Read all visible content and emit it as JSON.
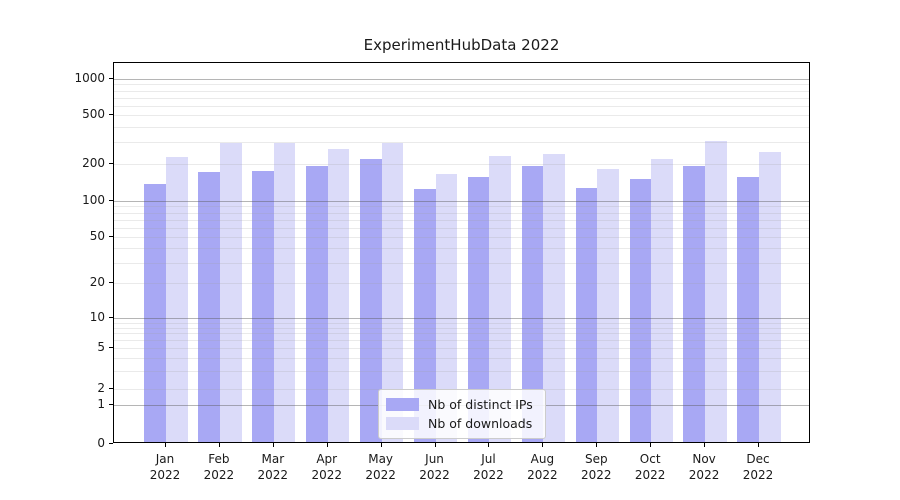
{
  "title": "ExperimentHubData 2022",
  "chart_data": {
    "type": "bar",
    "title": "ExperimentHubData 2022",
    "xlabel": "",
    "ylabel": "",
    "yscale": "symlog",
    "ylim": [
      0,
      1330
    ],
    "grid": true,
    "legend_position": "lower center",
    "categories": [
      "Jan 2022",
      "Feb 2022",
      "Mar 2022",
      "Apr 2022",
      "May 2022",
      "Jun 2022",
      "Jul 2022",
      "Aug 2022",
      "Sep 2022",
      "Oct 2022",
      "Nov 2022",
      "Dec 2022"
    ],
    "y_ticks": [
      0,
      1,
      2,
      5,
      10,
      20,
      50,
      100,
      200,
      500,
      1000
    ],
    "series": [
      {
        "name": "Nb of distinct IPs",
        "color": "#a8a8f4",
        "values": [
          133,
          165,
          170,
          186,
          212,
          121,
          151,
          187,
          122,
          146,
          184,
          150
        ]
      },
      {
        "name": "Nb of downloads",
        "color": "#dbdbf9",
        "values": [
          220,
          287,
          288,
          255,
          284,
          159,
          225,
          232,
          175,
          212,
          298,
          242
        ]
      }
    ]
  },
  "legend": {
    "items": [
      {
        "label": "Nb of distinct IPs",
        "color": "#a8a8f4"
      },
      {
        "label": "Nb of downloads",
        "color": "#dbdbf9"
      }
    ]
  },
  "colors": {
    "background": "#ffffff",
    "spine": "#000000",
    "tick_text": "#1a1a1a",
    "major_grid": "#5a5a5a",
    "minor_grid": "#dddddd"
  }
}
